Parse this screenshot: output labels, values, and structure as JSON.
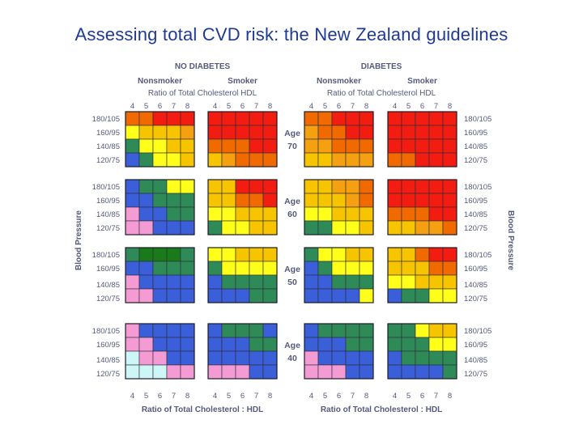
{
  "slide": {
    "title": "Assessing total CVD risk: the New Zealand guidelines"
  },
  "chart_data": {
    "type": "heatmap",
    "title": "Assessing total CVD risk: the New Zealand guidelines",
    "groups": [
      {
        "label": "NO DIABETES",
        "subgroups": [
          "Nonsmoker",
          "Smoker"
        ],
        "ratio_label": "Ratio of Total Cholesterol HDL"
      },
      {
        "label": "DIABETES",
        "subgroups": [
          "Nonsmoker",
          "Smoker"
        ],
        "ratio_label": "Ratio of Total Cholesterol HDL"
      }
    ],
    "x_ticks": [
      "4",
      "5",
      "6",
      "7",
      "8"
    ],
    "xlabel": "Ratio of Total Cholesterol : HDL",
    "ylabel": "Blood Pressure",
    "bp_rows": [
      "180/105",
      "160/95",
      "140/85",
      "120/75"
    ],
    "age_label": "Age",
    "ages": [
      "70",
      "60",
      "50",
      "40"
    ],
    "risk_colors": {
      "1": "#cdf6f6",
      "2": "#f59bd3",
      "3": "#3a5fd8",
      "4": "#2e8b57",
      "5": "#ffff1a",
      "6": "#f7c400",
      "7": "#f5a010",
      "8": "#f06a00",
      "9": "#f21c10",
      "10": "#1a7a1a"
    },
    "panels": [
      [
        [
          [
            8,
            8,
            9,
            9,
            9
          ],
          [
            5,
            6,
            6,
            6,
            7
          ],
          [
            4,
            5,
            5,
            6,
            6
          ],
          [
            3,
            4,
            5,
            5,
            6
          ]
        ],
        [
          [
            9,
            9,
            9,
            9,
            9
          ],
          [
            9,
            9,
            9,
            9,
            9
          ],
          [
            8,
            8,
            8,
            9,
            9
          ],
          [
            6,
            7,
            8,
            8,
            8
          ]
        ],
        [
          [
            8,
            8,
            9,
            9,
            9
          ],
          [
            7,
            8,
            8,
            9,
            9
          ],
          [
            7,
            7,
            8,
            8,
            8
          ],
          [
            6,
            6,
            7,
            7,
            7
          ]
        ],
        [
          [
            9,
            9,
            9,
            9,
            9
          ],
          [
            9,
            9,
            9,
            9,
            9
          ],
          [
            9,
            9,
            9,
            9,
            9
          ],
          [
            8,
            8,
            9,
            9,
            9
          ]
        ]
      ],
      [
        [
          [
            3,
            4,
            4,
            5,
            5
          ],
          [
            3,
            3,
            4,
            4,
            4
          ],
          [
            2,
            3,
            3,
            4,
            4
          ],
          [
            2,
            2,
            3,
            3,
            3
          ]
        ],
        [
          [
            6,
            6,
            9,
            9,
            9
          ],
          [
            6,
            6,
            8,
            8,
            9
          ],
          [
            5,
            5,
            6,
            6,
            6
          ],
          [
            4,
            5,
            5,
            6,
            6
          ]
        ],
        [
          [
            6,
            6,
            7,
            7,
            8
          ],
          [
            6,
            6,
            6,
            7,
            8
          ],
          [
            5,
            5,
            6,
            6,
            6
          ],
          [
            4,
            4,
            5,
            5,
            6
          ]
        ],
        [
          [
            9,
            9,
            9,
            9,
            9
          ],
          [
            9,
            9,
            9,
            9,
            9
          ],
          [
            8,
            8,
            8,
            9,
            9
          ],
          [
            6,
            6,
            7,
            7,
            8
          ]
        ]
      ],
      [
        [
          [
            4,
            10,
            10,
            10,
            4
          ],
          [
            3,
            3,
            4,
            4,
            4
          ],
          [
            2,
            3,
            3,
            3,
            3
          ],
          [
            2,
            2,
            3,
            3,
            3
          ]
        ],
        [
          [
            5,
            5,
            6,
            6,
            6
          ],
          [
            4,
            5,
            5,
            5,
            5
          ],
          [
            3,
            4,
            4,
            4,
            4
          ],
          [
            3,
            3,
            3,
            4,
            4
          ]
        ],
        [
          [
            4,
            5,
            5,
            6,
            6
          ],
          [
            3,
            4,
            5,
            5,
            5
          ],
          [
            3,
            3,
            4,
            4,
            4
          ],
          [
            3,
            3,
            3,
            3,
            5
          ]
        ],
        [
          [
            6,
            6,
            8,
            9,
            9
          ],
          [
            6,
            6,
            6,
            8,
            8
          ],
          [
            5,
            5,
            6,
            6,
            6
          ],
          [
            3,
            4,
            4,
            5,
            5
          ]
        ]
      ],
      [
        [
          [
            2,
            3,
            3,
            3,
            3
          ],
          [
            2,
            2,
            3,
            3,
            3
          ],
          [
            1,
            2,
            2,
            3,
            3
          ],
          [
            1,
            1,
            1,
            2,
            2
          ]
        ],
        [
          [
            3,
            4,
            4,
            4,
            3
          ],
          [
            3,
            3,
            3,
            4,
            4
          ],
          [
            3,
            3,
            3,
            3,
            3
          ],
          [
            2,
            2,
            2,
            3,
            3
          ]
        ],
        [
          [
            3,
            4,
            4,
            4,
            4
          ],
          [
            3,
            3,
            3,
            4,
            4
          ],
          [
            2,
            3,
            3,
            3,
            3
          ],
          [
            2,
            2,
            2,
            3,
            3
          ]
        ],
        [
          [
            4,
            4,
            5,
            6,
            6
          ],
          [
            4,
            4,
            4,
            5,
            5
          ],
          [
            3,
            4,
            4,
            4,
            4
          ],
          [
            3,
            3,
            3,
            3,
            4
          ]
        ]
      ]
    ]
  }
}
